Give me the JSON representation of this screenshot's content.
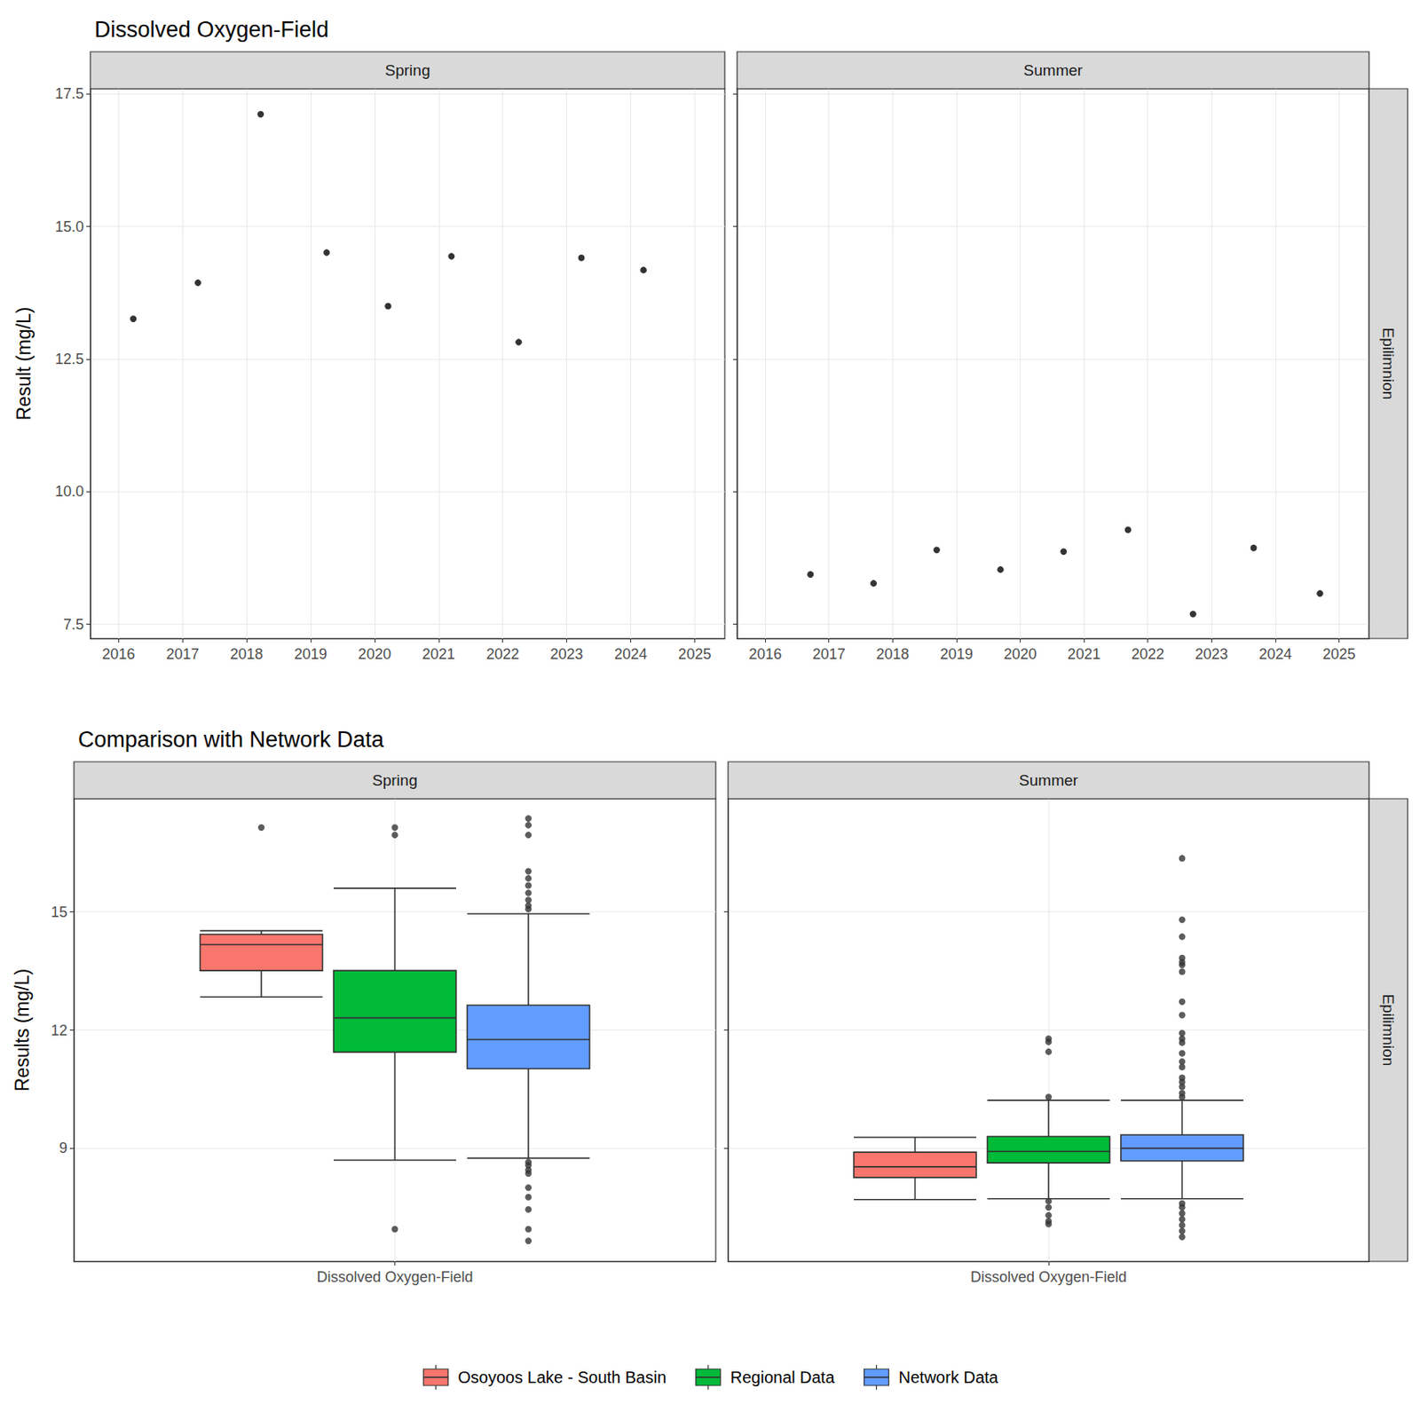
{
  "chart_data": [
    {
      "type": "scatter",
      "title": "Dissolved Oxygen-Field",
      "facet": "Spring",
      "y_label": "Result (mg/L)",
      "x": [
        2016.23,
        2017.24,
        2018.22,
        2019.25,
        2020.21,
        2021.2,
        2022.25,
        2023.23,
        2024.2
      ],
      "values": [
        13.26,
        13.94,
        17.12,
        14.51,
        13.5,
        14.44,
        12.82,
        14.41,
        14.18
      ],
      "xlim": [
        2015.56,
        2025.47
      ],
      "xticks": [
        2016,
        2017,
        2018,
        2019,
        2020,
        2021,
        2022,
        2023,
        2024,
        2025
      ],
      "ylim": [
        7.23,
        17.6
      ],
      "yticks": [
        7.5,
        {
          "value": 10,
          "label": "10.0"
        },
        12.5,
        {
          "value": 15,
          "label": "15.0"
        },
        17.5
      ],
      "grid": true,
      "color": "#000000",
      "marker": "circle"
    },
    {
      "type": "scatter",
      "facet": "Summer",
      "row_facet": "Epilimnion",
      "tick_labels": "x",
      "x": [
        2016.71,
        2017.7,
        2018.69,
        2019.69,
        2020.68,
        2021.69,
        2022.71,
        2023.66,
        2024.7
      ],
      "values": [
        8.44,
        8.27,
        8.9,
        8.53,
        8.87,
        9.28,
        7.69,
        8.94,
        8.08
      ],
      "xlim": [
        2015.56,
        2025.47
      ],
      "xticks": [
        2016,
        2017,
        2018,
        2019,
        2020,
        2021,
        2022,
        2023,
        2024,
        2025
      ],
      "ylim": [
        7.23,
        17.6
      ],
      "yticks": [
        7.5,
        {
          "value": 10,
          "label": "10.0"
        },
        12.5,
        {
          "value": 15,
          "label": "15.0"
        },
        17.5
      ],
      "grid": true,
      "color": "#000000",
      "marker": "circle"
    },
    {
      "type": "boxplot",
      "title": "Comparison with Network Data",
      "facet": "Spring",
      "y_label": "Results (mg/L)",
      "categories": [
        "Dissolved Oxygen-Field"
      ],
      "series": [
        {
          "name": "Osoyoos Lake - South Basin",
          "color": "#F8766D",
          "values": [
            [
              12.84,
              13.51,
              14.17,
              14.43,
              14.52
            ]
          ],
          "outliers": [
            [
              17.14
            ]
          ]
        },
        {
          "name": "Regional Data",
          "color": "#00BA38",
          "values": [
            [
              8.7,
              11.44,
              12.31,
              13.51,
              15.6
            ]
          ],
          "outliers": [
            [
              17.14,
              16.95,
              6.95
            ]
          ]
        },
        {
          "name": "Network Data",
          "color": "#619CFF",
          "values": [
            [
              8.75,
              11.02,
              11.76,
              12.63,
              14.95
            ]
          ],
          "outliers": [
            [
              17.37,
              17.2,
              16.95,
              16.03,
              15.85,
              15.67,
              15.48,
              15.3,
              15.16,
              15.07,
              8.65,
              8.57,
              8.45,
              8.36,
              8.0,
              7.76,
              7.45,
              6.95,
              6.65
            ]
          ]
        }
      ],
      "ylim": [
        6.13,
        17.87
      ],
      "yticks": [
        9,
        12,
        15
      ],
      "grid": true
    },
    {
      "type": "boxplot",
      "facet": "Summer",
      "row_facet": "Epilimnion",
      "tick_labels": "x",
      "categories": [
        "Dissolved Oxygen-Field"
      ],
      "series": [
        {
          "name": "Osoyoos Lake - South Basin",
          "color": "#F8766D",
          "values": [
            [
              7.7,
              8.26,
              8.53,
              8.9,
              9.28
            ]
          ],
          "outliers": [
            []
          ]
        },
        {
          "name": "Regional Data",
          "color": "#00BA38",
          "values": [
            [
              7.72,
              8.63,
              8.92,
              9.3,
              10.22
            ]
          ],
          "outliers": [
            [
              11.78,
              11.7,
              11.45,
              10.3,
              7.66,
              7.5,
              7.3,
              7.15,
              7.08
            ]
          ]
        },
        {
          "name": "Network Data",
          "color": "#619CFF",
          "values": [
            [
              7.72,
              8.68,
              9.0,
              9.34,
              10.22
            ]
          ],
          "outliers": [
            [
              16.36,
              14.8,
              14.37,
              13.83,
              13.72,
              13.65,
              13.48,
              12.72,
              12.38,
              11.92,
              11.78,
              11.68,
              11.41,
              11.2,
              11.06,
              10.79,
              10.68,
              10.56,
              10.4,
              10.3,
              7.6,
              7.5,
              7.35,
              7.2,
              7.05,
              6.9,
              6.75
            ]
          ]
        }
      ],
      "ylim": [
        6.13,
        17.87
      ],
      "yticks": [
        9,
        12,
        15
      ],
      "grid": true,
      "legend": "bottom"
    }
  ]
}
